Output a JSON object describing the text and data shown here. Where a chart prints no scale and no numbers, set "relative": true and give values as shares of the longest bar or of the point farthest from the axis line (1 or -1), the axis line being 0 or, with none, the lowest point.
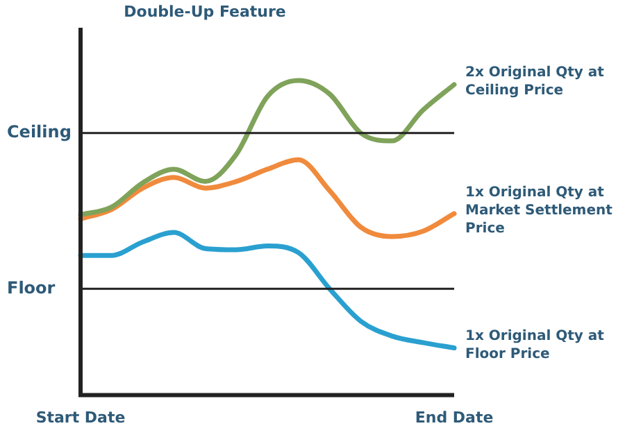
{
  "chart_data": {
    "type": "line",
    "title": "Double-Up Feature",
    "relative": true,
    "grid": false,
    "legend": false,
    "marker": "none",
    "line_style": "solid",
    "categories": [
      "Start Date",
      null,
      null,
      null,
      null,
      null,
      null,
      null,
      null,
      null,
      null,
      null,
      "End Date"
    ],
    "series": [
      {
        "name": "2x Original Qty at Ceiling Price",
        "color": "#7fa35a",
        "values": [
          0.573,
          0.598,
          0.675,
          0.718,
          0.679,
          0.765,
          0.949,
          1,
          0.957,
          0.833,
          0.808,
          0.906,
          0.987
        ]
      },
      {
        "name": "1x Original Qty at Market Settlement Price",
        "color": "#f08a3c",
        "values": [
          0.56,
          0.59,
          0.658,
          0.692,
          0.658,
          0.679,
          0.718,
          0.748,
          0.65,
          0.534,
          0.504,
          0.521,
          0.577
        ]
      },
      {
        "name": "1x Original Qty at Floor Price",
        "color": "#2aa0d0",
        "values": [
          0.444,
          0.444,
          0.487,
          0.517,
          0.466,
          0.462,
          0.474,
          0.453,
          0.338,
          0.235,
          0.188,
          0.167,
          0.15
        ]
      }
    ],
    "ref_lines": [
      {
        "axis": "y",
        "value": 0.833,
        "label": "Ceiling",
        "color": "#222222"
      },
      {
        "axis": "y",
        "value": 0.338,
        "label": "Floor",
        "color": "#222222"
      }
    ]
  }
}
